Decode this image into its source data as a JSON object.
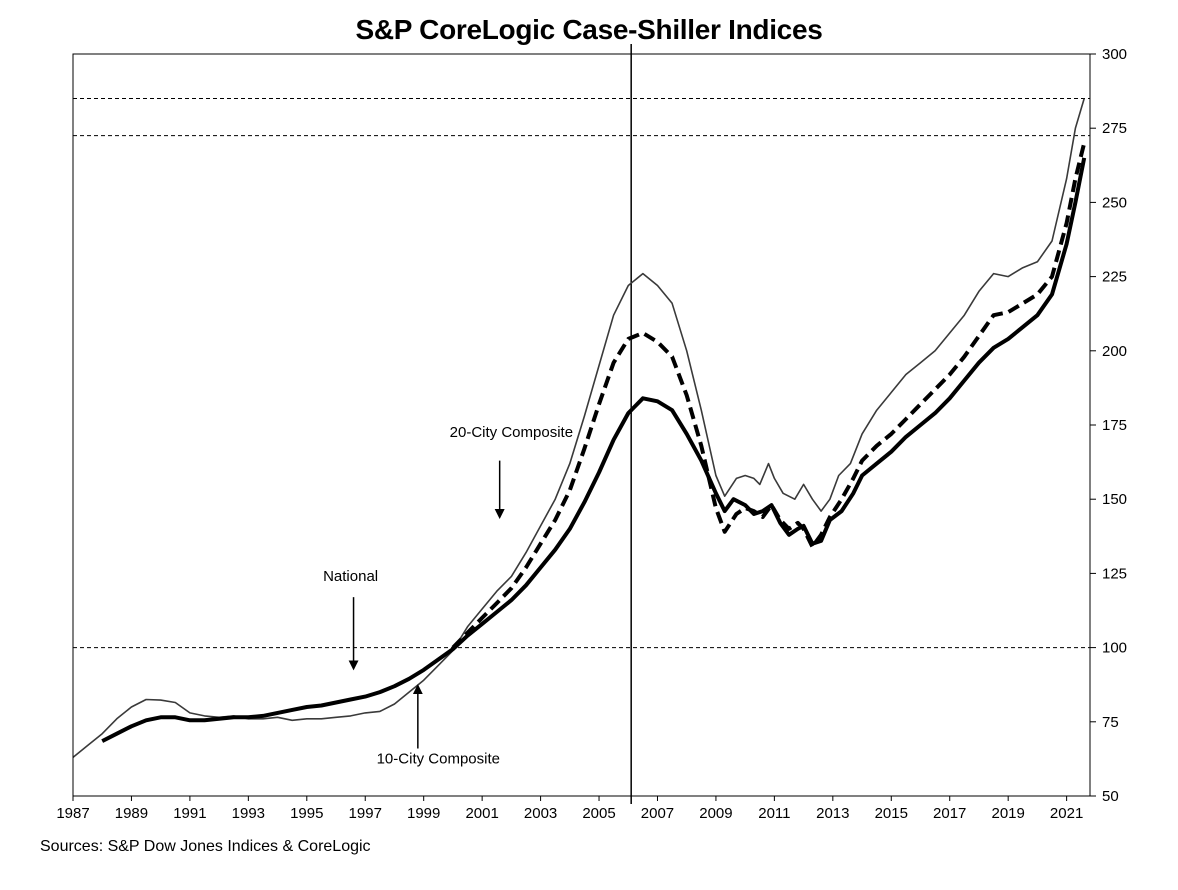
{
  "chart_data": {
    "type": "line",
    "title": "S&P CoreLogic Case-Shiller Indices",
    "source": "Sources:  S&P Dow Jones Indices & CoreLogic",
    "xlim": [
      1987,
      2021.8
    ],
    "ylim": [
      50,
      300
    ],
    "x_ticks": [
      1987,
      1989,
      1991,
      1993,
      1995,
      1997,
      1999,
      2001,
      2003,
      2005,
      2007,
      2009,
      2011,
      2013,
      2015,
      2017,
      2019,
      2021
    ],
    "y_ticks": [
      50,
      75,
      100,
      125,
      150,
      175,
      200,
      225,
      250,
      275,
      300
    ],
    "y_axis_side": "right",
    "reference_lines": {
      "horizontal": [
        100,
        272.5,
        285
      ],
      "vertical": [
        2006.1
      ]
    },
    "series": [
      {
        "name": "10-City Composite",
        "style": "thin",
        "points": [
          [
            1987.0,
            63
          ],
          [
            1987.5,
            67
          ],
          [
            1988.0,
            71
          ],
          [
            1988.5,
            76
          ],
          [
            1989.0,
            80
          ],
          [
            1989.5,
            82.5
          ],
          [
            1990.0,
            82.3
          ],
          [
            1990.5,
            81.5
          ],
          [
            1991.0,
            78
          ],
          [
            1991.5,
            77
          ],
          [
            1992.0,
            76.5
          ],
          [
            1992.5,
            77
          ],
          [
            1993.0,
            76
          ],
          [
            1993.5,
            76
          ],
          [
            1994.0,
            76.5
          ],
          [
            1994.5,
            75.5
          ],
          [
            1995.0,
            76
          ],
          [
            1995.5,
            76
          ],
          [
            1996.0,
            76.5
          ],
          [
            1996.5,
            77
          ],
          [
            1997.0,
            78
          ],
          [
            1997.5,
            78.5
          ],
          [
            1998.0,
            81
          ],
          [
            1998.5,
            85
          ],
          [
            1999.0,
            89
          ],
          [
            1999.5,
            94
          ],
          [
            2000.0,
            99
          ],
          [
            2000.5,
            107
          ],
          [
            2001.0,
            113
          ],
          [
            2001.5,
            119
          ],
          [
            2002.0,
            124
          ],
          [
            2002.5,
            132
          ],
          [
            2003.0,
            141
          ],
          [
            2003.5,
            150
          ],
          [
            2004.0,
            162
          ],
          [
            2004.5,
            178
          ],
          [
            2005.0,
            195
          ],
          [
            2005.5,
            212
          ],
          [
            2006.0,
            222
          ],
          [
            2006.5,
            226
          ],
          [
            2007.0,
            222
          ],
          [
            2007.5,
            216
          ],
          [
            2008.0,
            200
          ],
          [
            2008.5,
            180
          ],
          [
            2009.0,
            158
          ],
          [
            2009.3,
            151
          ],
          [
            2009.7,
            157
          ],
          [
            2010.0,
            158
          ],
          [
            2010.3,
            157
          ],
          [
            2010.5,
            155
          ],
          [
            2010.8,
            162
          ],
          [
            2011.0,
            157
          ],
          [
            2011.3,
            152
          ],
          [
            2011.7,
            150
          ],
          [
            2012.0,
            155
          ],
          [
            2012.3,
            150
          ],
          [
            2012.6,
            146
          ],
          [
            2012.9,
            150
          ],
          [
            2013.2,
            158
          ],
          [
            2013.6,
            162
          ],
          [
            2014.0,
            172
          ],
          [
            2014.5,
            180
          ],
          [
            2015.0,
            186
          ],
          [
            2015.5,
            192
          ],
          [
            2016.0,
            196
          ],
          [
            2016.5,
            200
          ],
          [
            2017.0,
            206
          ],
          [
            2017.5,
            212
          ],
          [
            2018.0,
            220
          ],
          [
            2018.5,
            226
          ],
          [
            2019.0,
            225
          ],
          [
            2019.5,
            228
          ],
          [
            2020.0,
            230
          ],
          [
            2020.5,
            237
          ],
          [
            2021.0,
            258
          ],
          [
            2021.3,
            275
          ],
          [
            2021.6,
            285
          ]
        ]
      },
      {
        "name": "20-City Composite",
        "style": "dashed",
        "points": [
          [
            2000.0,
            100
          ],
          [
            2000.5,
            105
          ],
          [
            2001.0,
            110
          ],
          [
            2001.5,
            115
          ],
          [
            2002.0,
            120
          ],
          [
            2002.5,
            127
          ],
          [
            2003.0,
            135
          ],
          [
            2003.5,
            143
          ],
          [
            2004.0,
            153
          ],
          [
            2004.5,
            167
          ],
          [
            2005.0,
            182
          ],
          [
            2005.5,
            196
          ],
          [
            2006.0,
            204
          ],
          [
            2006.5,
            206
          ],
          [
            2007.0,
            203
          ],
          [
            2007.5,
            198
          ],
          [
            2008.0,
            185
          ],
          [
            2008.5,
            168
          ],
          [
            2009.0,
            147
          ],
          [
            2009.3,
            139
          ],
          [
            2009.7,
            145
          ],
          [
            2010.0,
            147
          ],
          [
            2010.3,
            146
          ],
          [
            2010.6,
            144
          ],
          [
            2010.9,
            148
          ],
          [
            2011.2,
            143
          ],
          [
            2011.5,
            140
          ],
          [
            2011.8,
            142
          ],
          [
            2012.0,
            140
          ],
          [
            2012.3,
            134
          ],
          [
            2012.6,
            138
          ],
          [
            2012.9,
            144
          ],
          [
            2013.3,
            150
          ],
          [
            2013.7,
            157
          ],
          [
            2014.0,
            163
          ],
          [
            2014.5,
            168
          ],
          [
            2015.0,
            172
          ],
          [
            2015.5,
            177
          ],
          [
            2016.0,
            182
          ],
          [
            2016.5,
            187
          ],
          [
            2017.0,
            192
          ],
          [
            2017.5,
            198
          ],
          [
            2018.0,
            205
          ],
          [
            2018.5,
            212
          ],
          [
            2019.0,
            213
          ],
          [
            2019.5,
            216
          ],
          [
            2020.0,
            219
          ],
          [
            2020.5,
            225
          ],
          [
            2021.0,
            243
          ],
          [
            2021.3,
            258
          ],
          [
            2021.6,
            270
          ]
        ]
      },
      {
        "name": "National",
        "style": "thick",
        "points": [
          [
            1988.0,
            68.5
          ],
          [
            1988.5,
            71
          ],
          [
            1989.0,
            73.5
          ],
          [
            1989.5,
            75.5
          ],
          [
            1990.0,
            76.5
          ],
          [
            1990.5,
            76.5
          ],
          [
            1991.0,
            75.5
          ],
          [
            1991.5,
            75.5
          ],
          [
            1992.0,
            76
          ],
          [
            1992.5,
            76.5
          ],
          [
            1993.0,
            76.5
          ],
          [
            1993.5,
            77
          ],
          [
            1994.0,
            78
          ],
          [
            1994.5,
            79
          ],
          [
            1995.0,
            80
          ],
          [
            1995.5,
            80.5
          ],
          [
            1996.0,
            81.5
          ],
          [
            1996.5,
            82.5
          ],
          [
            1997.0,
            83.5
          ],
          [
            1997.5,
            85
          ],
          [
            1998.0,
            87
          ],
          [
            1998.5,
            89.5
          ],
          [
            1999.0,
            92.5
          ],
          [
            1999.5,
            96
          ],
          [
            2000.0,
            99.5
          ],
          [
            2000.5,
            104
          ],
          [
            2001.0,
            108
          ],
          [
            2001.5,
            112
          ],
          [
            2002.0,
            116
          ],
          [
            2002.5,
            121
          ],
          [
            2003.0,
            127
          ],
          [
            2003.5,
            133
          ],
          [
            2004.0,
            140
          ],
          [
            2004.5,
            149
          ],
          [
            2005.0,
            159
          ],
          [
            2005.5,
            170
          ],
          [
            2006.0,
            179
          ],
          [
            2006.5,
            184
          ],
          [
            2007.0,
            183
          ],
          [
            2007.5,
            180
          ],
          [
            2008.0,
            172
          ],
          [
            2008.5,
            163
          ],
          [
            2009.0,
            152
          ],
          [
            2009.3,
            146
          ],
          [
            2009.6,
            150
          ],
          [
            2010.0,
            148
          ],
          [
            2010.3,
            145
          ],
          [
            2010.6,
            146
          ],
          [
            2010.9,
            148
          ],
          [
            2011.2,
            142
          ],
          [
            2011.5,
            138
          ],
          [
            2011.8,
            140
          ],
          [
            2012.0,
            141
          ],
          [
            2012.3,
            135
          ],
          [
            2012.6,
            136
          ],
          [
            2012.9,
            143
          ],
          [
            2013.3,
            146
          ],
          [
            2013.7,
            152
          ],
          [
            2014.0,
            158
          ],
          [
            2014.5,
            162
          ],
          [
            2015.0,
            166
          ],
          [
            2015.5,
            171
          ],
          [
            2016.0,
            175
          ],
          [
            2016.5,
            179
          ],
          [
            2017.0,
            184
          ],
          [
            2017.5,
            190
          ],
          [
            2018.0,
            196
          ],
          [
            2018.5,
            201
          ],
          [
            2019.0,
            204
          ],
          [
            2019.5,
            208
          ],
          [
            2020.0,
            212
          ],
          [
            2020.5,
            219
          ],
          [
            2021.0,
            236
          ],
          [
            2021.3,
            250
          ],
          [
            2021.6,
            265
          ]
        ]
      }
    ],
    "annotations": [
      {
        "text": "20-City Composite",
        "label_at": [
          2002.0,
          171
        ],
        "arrow_from": [
          2001.6,
          163
        ],
        "arrow_to": [
          2001.6,
          144
        ]
      },
      {
        "text": "National",
        "label_at": [
          1996.5,
          122.5
        ],
        "arrow_from": [
          1996.6,
          117
        ],
        "arrow_to": [
          1996.6,
          93
        ]
      },
      {
        "text": "10-City Composite",
        "label_at": [
          1999.5,
          61
        ],
        "arrow_from": [
          1998.8,
          66
        ],
        "arrow_to": [
          1998.8,
          87
        ]
      }
    ]
  }
}
